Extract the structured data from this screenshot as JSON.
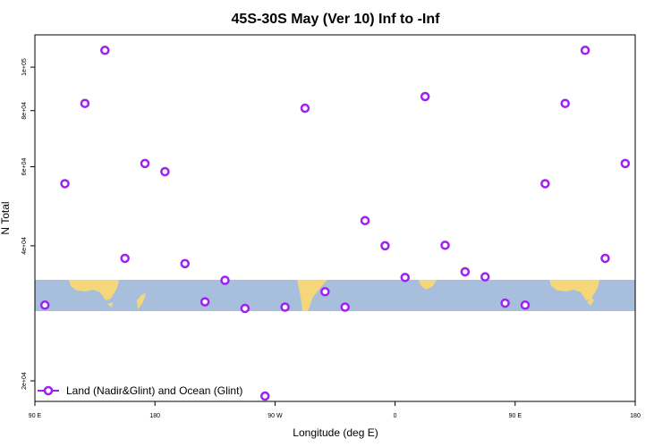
{
  "chart_data": {
    "type": "scatter",
    "title": "45S-30S May (Ver 10)   Inf to -Inf",
    "xlabel": "Longitude (deg E)",
    "ylabel": "N Total",
    "x_ticks": [
      {
        "value": 90,
        "label": "90 E"
      },
      {
        "value": 180,
        "label": "180"
      },
      {
        "value": 270,
        "label": "90 W"
      },
      {
        "value": 360,
        "label": "0"
      },
      {
        "value": 450,
        "label": "90 E"
      },
      {
        "value": 540,
        "label": "180"
      }
    ],
    "y_ticks": [
      {
        "value": 20000,
        "label": "2e+04"
      },
      {
        "value": 40000,
        "label": "4e+04"
      },
      {
        "value": 60000,
        "label": "6e+04"
      },
      {
        "value": 80000,
        "label": "8e+04"
      },
      {
        "value": 100000,
        "label": "1e+05"
      }
    ],
    "y_scale": "log",
    "xlim": [
      90,
      540
    ],
    "ylim": [
      18000,
      118000
    ],
    "series": [
      {
        "name": "Land (Nadir&Glint) and Ocean (Glint)",
        "color": "#a020f0",
        "marker": "open-circle",
        "x": [
          97.5,
          112.5,
          127.5,
          142.5,
          157.5,
          172.5,
          187.5,
          202.5,
          217.5,
          232.5,
          247.5,
          262.5,
          277.5,
          292.5,
          307.5,
          322.5,
          337.5,
          352.5,
          367.5,
          382.5,
          397.5,
          412.5,
          427.5,
          442.5,
          457.5,
          472.5,
          487.5,
          502.5,
          517.5,
          532.5
        ],
        "y": [
          29500,
          55000,
          83000,
          109000,
          37500,
          61000,
          58500,
          36500,
          30000,
          33500,
          29000,
          18500,
          29200,
          81000,
          31600,
          29200,
          45500,
          40000,
          34000,
          86000,
          40100,
          35000,
          34100,
          29800,
          29500,
          55000,
          83000,
          109000,
          37500,
          61000
        ]
      }
    ],
    "legend": {
      "position": "bottom-left",
      "entries": [
        "Land (Nadir&Glint) and Ocean (Glint)"
      ]
    },
    "grid": false,
    "background_strip": {
      "ocean_color": "#a7bedd",
      "land_color": "#f5d77a"
    }
  }
}
